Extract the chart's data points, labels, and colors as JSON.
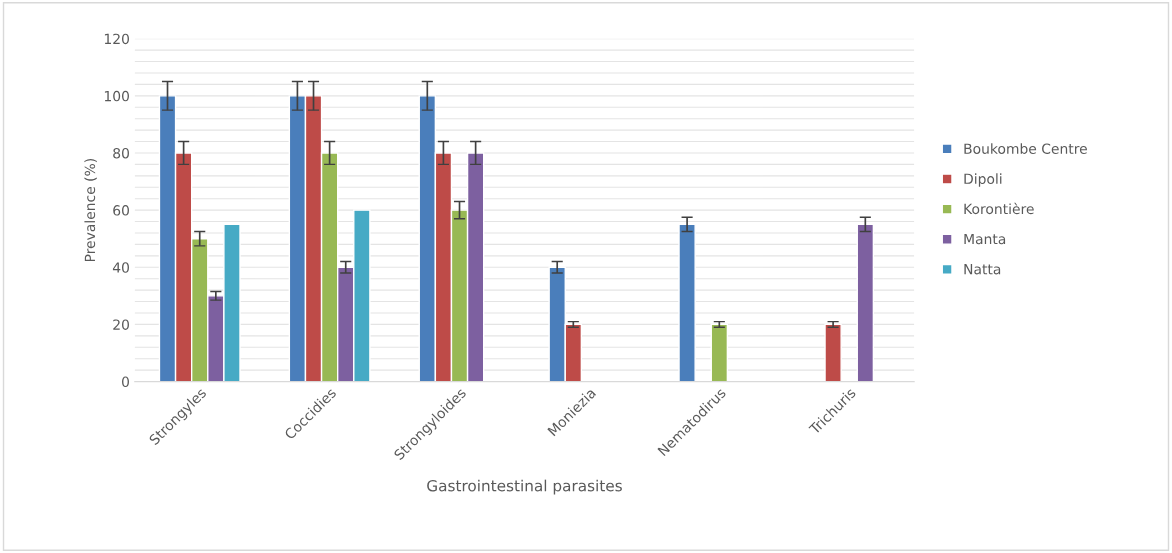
{
  "chart_data": {
    "type": "bar",
    "xlabel": "Gastrointestinal parasites",
    "ylabel": "Prevalence (%)",
    "categories": [
      "Strongyles",
      "Coccidies",
      "Strongyloides",
      "Moniezia",
      "Nematodirus",
      "Trichuris"
    ],
    "series": [
      {
        "name": "Boukombe Centre",
        "color": "#4a7ebb",
        "values": [
          100,
          100,
          100,
          40,
          55,
          null
        ],
        "errors": [
          5,
          5,
          5,
          2,
          2.5,
          null
        ]
      },
      {
        "name": "Dipoli",
        "color": "#be4b48",
        "values": [
          80,
          100,
          80,
          20,
          null,
          20
        ],
        "errors": [
          4,
          5,
          4,
          1,
          null,
          1
        ]
      },
      {
        "name": "Korontière",
        "color": "#98b954",
        "values": [
          50,
          80,
          60,
          null,
          20,
          null
        ],
        "errors": [
          2.5,
          4,
          3,
          null,
          1,
          null
        ]
      },
      {
        "name": "Manta",
        "color": "#7d60a0",
        "values": [
          30,
          40,
          80,
          null,
          null,
          55
        ],
        "errors": [
          1.5,
          2,
          4,
          null,
          null,
          2.5
        ]
      },
      {
        "name": "Natta",
        "color": "#46aac5",
        "values": [
          55,
          60,
          null,
          null,
          null,
          null
        ]
      }
    ],
    "ylim": [
      0,
      120
    ],
    "yticks": [
      0,
      {
        "value": 4,
        "label": null
      },
      {
        "value": 8,
        "label": null
      },
      {
        "value": 12,
        "label": null
      },
      {
        "value": 16,
        "label": null
      },
      20,
      {
        "value": 24,
        "label": null
      },
      {
        "value": 28,
        "label": null
      },
      {
        "value": 32,
        "label": null
      },
      {
        "value": 36,
        "label": null
      },
      40,
      {
        "value": 44,
        "label": null
      },
      {
        "value": 48,
        "label": null
      },
      {
        "value": 52,
        "label": null
      },
      {
        "value": 56,
        "label": null
      },
      60,
      {
        "value": 64,
        "label": null
      },
      {
        "value": 68,
        "label": null
      },
      {
        "value": 72,
        "label": null
      },
      {
        "value": 76,
        "label": null
      },
      80,
      {
        "value": 84,
        "label": null
      },
      {
        "value": 88,
        "label": null
      },
      {
        "value": 92,
        "label": null
      },
      {
        "value": 96,
        "label": null
      },
      100,
      {
        "value": 104,
        "label": null
      },
      {
        "value": 108,
        "label": null
      },
      {
        "value": 112,
        "label": null
      },
      {
        "value": 116,
        "label": null
      },
      120
    ],
    "grid": "y",
    "legend": "right"
  }
}
